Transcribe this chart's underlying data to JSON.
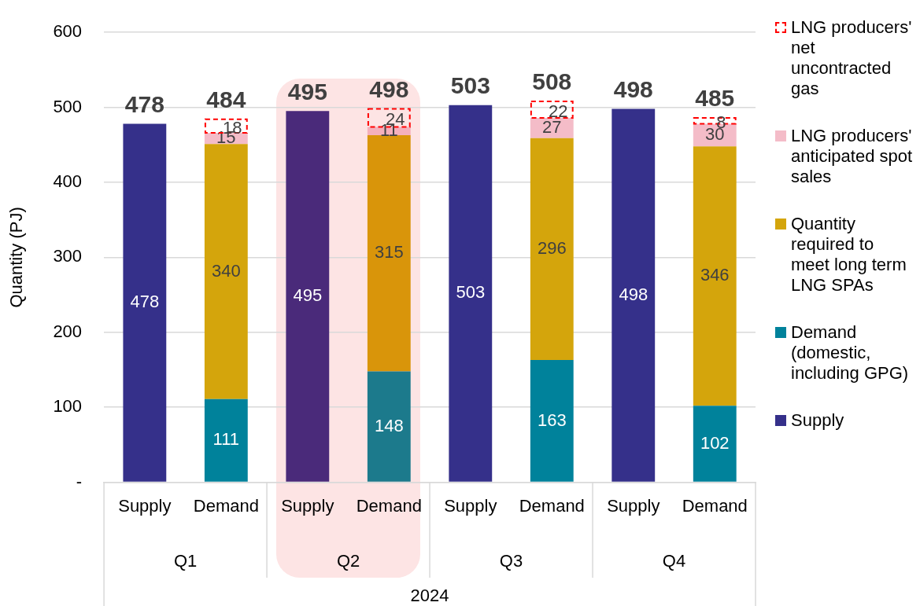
{
  "chart_data": {
    "type": "bar",
    "stacked": true,
    "ylabel": "Quantity (PJ)",
    "categories": [
      "Supply",
      "Demand",
      "Supply",
      "Demand",
      "Supply",
      "Demand",
      "Supply",
      "Demand"
    ],
    "series": [
      {
        "name": "Supply",
        "color": "#35308a",
        "colors": [
          "#35308a",
          "#35308a",
          "#4a2a7a",
          "#4a2a7a",
          "#35308a",
          "#35308a",
          "#35308a",
          "#35308a"
        ],
        "values": [
          478,
          null,
          495,
          null,
          503,
          null,
          498,
          null
        ]
      },
      {
        "name": "Demand (domestic, including GPG)",
        "color": "#00829b",
        "colors": [
          "#00829b",
          "#00829b",
          "#1c7a8c",
          "#1c7a8c",
          "#00829b",
          "#00829b",
          "#00829b",
          "#00829b"
        ],
        "values": [
          null,
          111,
          null,
          148,
          null,
          163,
          null,
          102
        ]
      },
      {
        "name": "Quantity required to meet long term LNG SPAs",
        "color": "#d4a50c",
        "colors": [
          "#d4a50c",
          "#d4a50c",
          "#d9950a",
          "#d9950a",
          "#d4a50c",
          "#d4a50c",
          "#d4a50c",
          "#d4a50c"
        ],
        "values": [
          null,
          340,
          null,
          315,
          null,
          296,
          null,
          346
        ]
      },
      {
        "name": "LNG producers' anticipated spot sales",
        "color": "#f4bcc8",
        "colors": [
          "#f4bcc8",
          "#f4bcc8",
          "#f4b0bc",
          "#f4b0bc",
          "#f4bcc8",
          "#f4bcc8",
          "#f4bcc8",
          "#f4bcc8"
        ],
        "values": [
          null,
          15,
          null,
          11,
          null,
          27,
          null,
          30
        ]
      },
      {
        "name": "LNG producers' net uncontracted gas",
        "color": "#ff0000",
        "line_style": "dashed",
        "values": [
          null,
          18,
          null,
          24,
          null,
          22,
          null,
          8
        ]
      }
    ],
    "totals": [
      "478",
      "484",
      "495",
      "498",
      "503",
      "508",
      "498",
      "485"
    ],
    "data_labels": true,
    "annotations": [
      "Q1",
      "Q2",
      "Q3",
      "Q4",
      "2024"
    ],
    "ylim": [
      0,
      600
    ],
    "yticks": [
      {
        "value": 0,
        "label": "-"
      },
      100,
      200,
      300,
      400,
      500,
      600
    ],
    "grid": "y",
    "legend": "right"
  }
}
